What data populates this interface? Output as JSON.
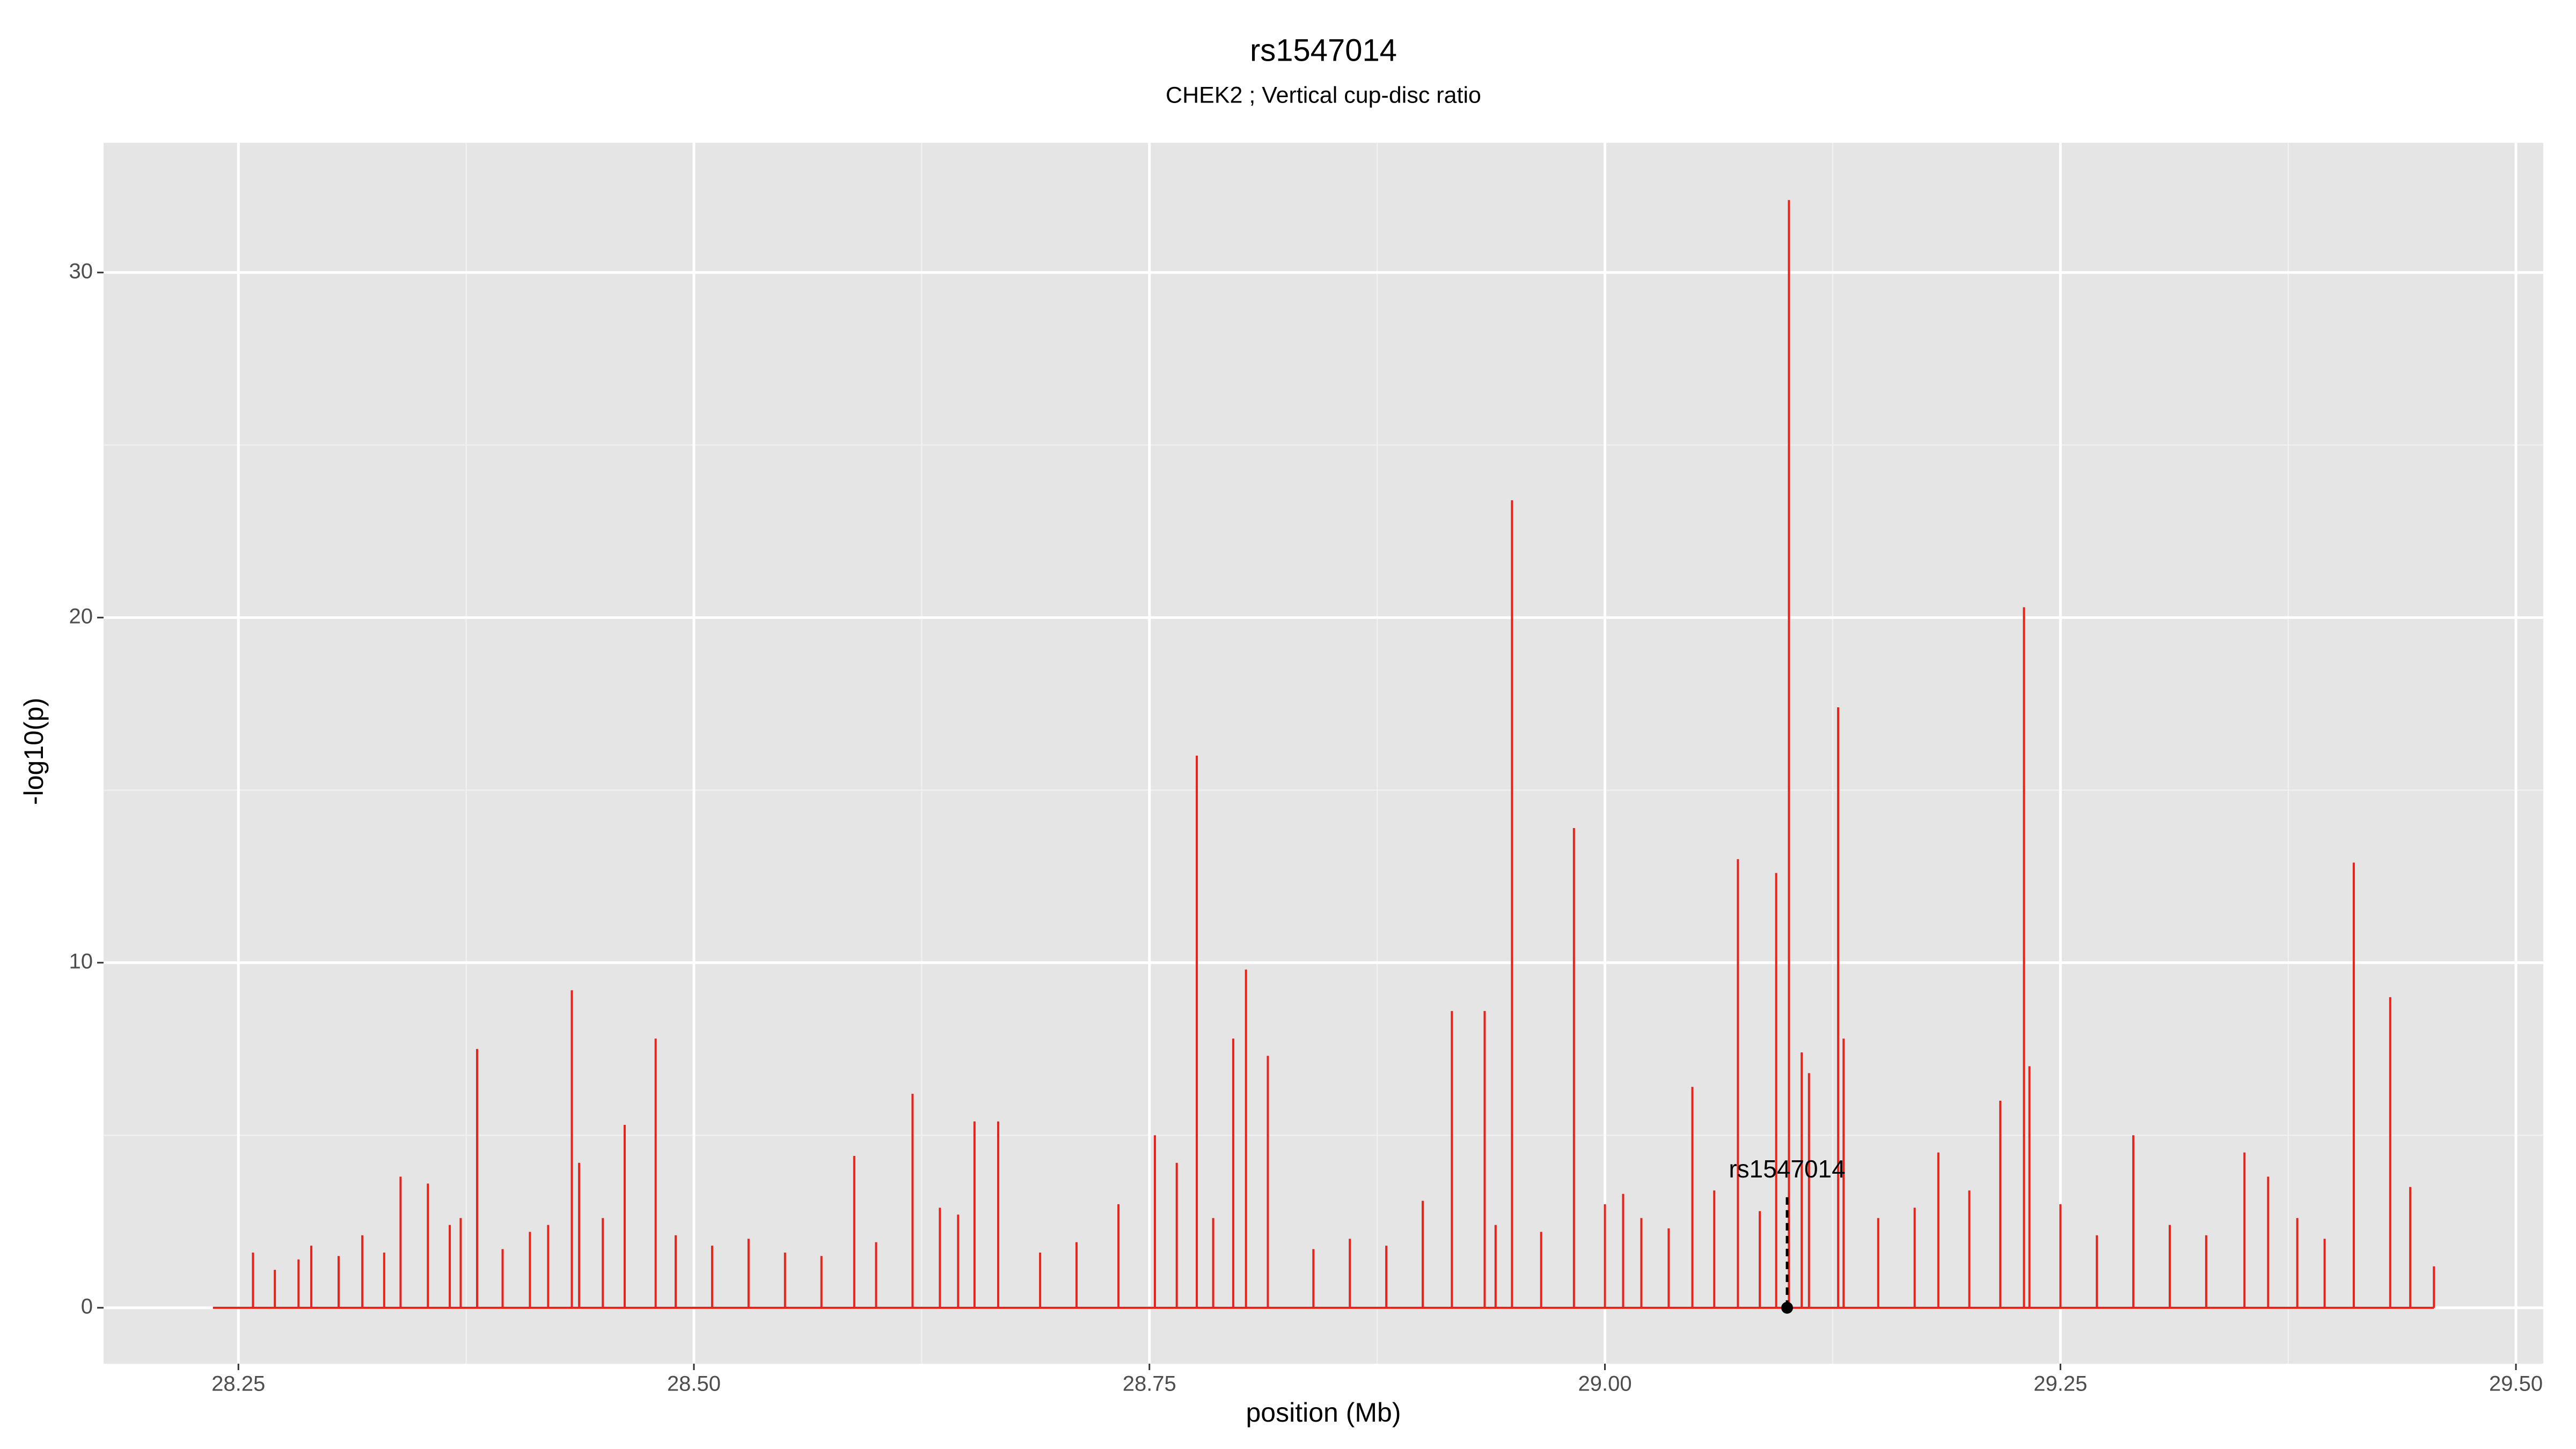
{
  "chart_data": {
    "type": "spike",
    "title": "rs1547014",
    "subtitle": "CHEK2 ; Vertical cup-disc ratio",
    "xlabel": "position (Mb)",
    "ylabel": "-log10(p)",
    "color": "#e8231c",
    "grid": true,
    "xlim": [
      28.176,
      29.515
    ],
    "ylim": [
      -1.62,
      33.76
    ],
    "xticks": [
      {
        "value": 28.25,
        "label": "28.25"
      },
      {
        "value": 28.5,
        "label": "28.50"
      },
      {
        "value": 28.75,
        "label": "28.75"
      },
      {
        "value": 29.0,
        "label": "29.00"
      },
      {
        "value": 29.25,
        "label": "29.25"
      },
      {
        "value": 29.5,
        "label": "29.50"
      }
    ],
    "yticks": [
      0,
      10,
      20,
      30
    ],
    "x": [
      28.236,
      28.258,
      28.27,
      28.283,
      28.29,
      28.305,
      28.318,
      28.33,
      28.339,
      28.354,
      28.366,
      28.372,
      28.381,
      28.395,
      28.41,
      28.42,
      28.433,
      28.437,
      28.45,
      28.462,
      28.479,
      28.49,
      28.51,
      28.53,
      28.55,
      28.57,
      28.588,
      28.6,
      28.62,
      28.635,
      28.645,
      28.654,
      28.667,
      28.69,
      28.71,
      28.733,
      28.753,
      28.765,
      28.776,
      28.785,
      28.796,
      28.803,
      28.815,
      28.84,
      28.86,
      28.88,
      28.9,
      28.916,
      28.934,
      28.94,
      28.949,
      28.965,
      28.983,
      29.0,
      29.01,
      29.02,
      29.035,
      29.048,
      29.06,
      29.073,
      29.085,
      29.094,
      29.101,
      29.108,
      29.112,
      29.128,
      29.131,
      29.15,
      29.17,
      29.183,
      29.2,
      29.217,
      29.23,
      29.233,
      29.25,
      29.27,
      29.29,
      29.31,
      29.33,
      29.351,
      29.364,
      29.38,
      29.395,
      29.411,
      29.431,
      29.442,
      29.455
    ],
    "values": [
      0,
      1.6,
      1.1,
      1.4,
      1.8,
      1.5,
      2.1,
      1.6,
      3.8,
      3.6,
      2.4,
      2.6,
      7.5,
      1.7,
      2.2,
      2.4,
      9.2,
      4.2,
      2.6,
      5.3,
      7.8,
      2.1,
      1.8,
      2.0,
      1.6,
      1.5,
      4.4,
      1.9,
      6.2,
      2.9,
      2.7,
      5.4,
      5.4,
      1.6,
      1.9,
      3.0,
      5.0,
      4.2,
      16,
      2.6,
      7.8,
      9.8,
      7.3,
      1.7,
      2.0,
      1.8,
      3.1,
      8.6,
      8.6,
      2.4,
      23.4,
      2.2,
      13.9,
      3.0,
      3.3,
      2.6,
      2.3,
      6.4,
      3.4,
      13.0,
      2.8,
      12.6,
      32.1,
      7.4,
      6.8,
      17.4,
      7.8,
      2.6,
      2.9,
      4.5,
      3.4,
      6.0,
      20.3,
      7.0,
      3.0,
      2.1,
      5.0,
      2.4,
      2.1,
      4.5,
      3.8,
      2.6,
      2.0,
      12.9,
      9.0,
      3.5,
      1.2
    ],
    "annotation": {
      "text": "rs1547014",
      "x": 29.1,
      "y": 0
    }
  }
}
